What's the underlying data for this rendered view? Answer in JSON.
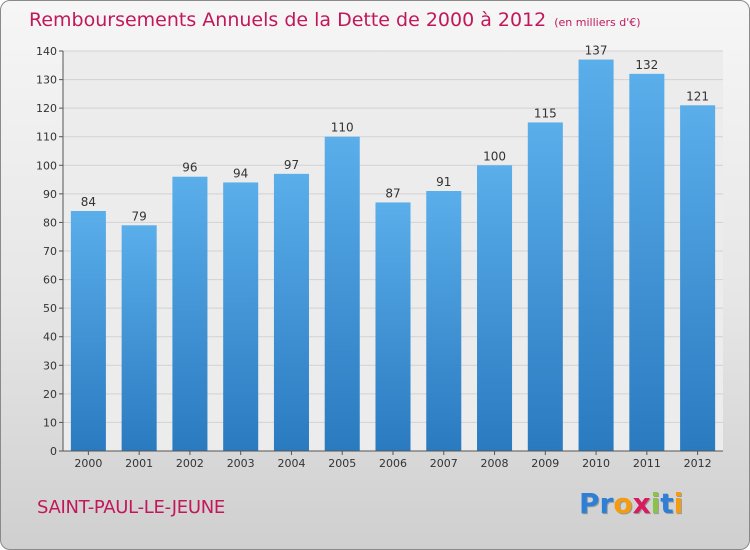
{
  "header": {
    "title": "Remboursements Annuels de la Dette de 2000 à 2012",
    "subtitle": "(en milliers d'€)"
  },
  "footer": {
    "town": "SAINT-PAUL-LE-JEUNE",
    "logo_letters": [
      "P",
      "r",
      "o",
      "x",
      "i",
      "t",
      "i"
    ],
    "logo_colors": [
      "#2e7fd6",
      "#2e7fd6",
      "#f39c12",
      "#d81b60",
      "#8bc34a",
      "#2e7fd6",
      "#f39c12"
    ]
  },
  "chart_data": {
    "type": "bar",
    "title": "Remboursements Annuels de la Dette de 2000 à 2012",
    "categories": [
      "2000",
      "2001",
      "2002",
      "2003",
      "2004",
      "2005",
      "2006",
      "2007",
      "2008",
      "2009",
      "2010",
      "2011",
      "2012"
    ],
    "values": [
      84,
      79,
      96,
      94,
      97,
      110,
      87,
      91,
      100,
      115,
      137,
      132,
      121
    ],
    "ylim": [
      0,
      140
    ],
    "yticks": [
      0,
      10,
      20,
      30,
      40,
      50,
      60,
      70,
      80,
      90,
      100,
      110,
      120,
      130,
      140
    ],
    "grid": true,
    "bar_color_top": "#5aaeea",
    "bar_color_bottom": "#2a7ac0"
  }
}
